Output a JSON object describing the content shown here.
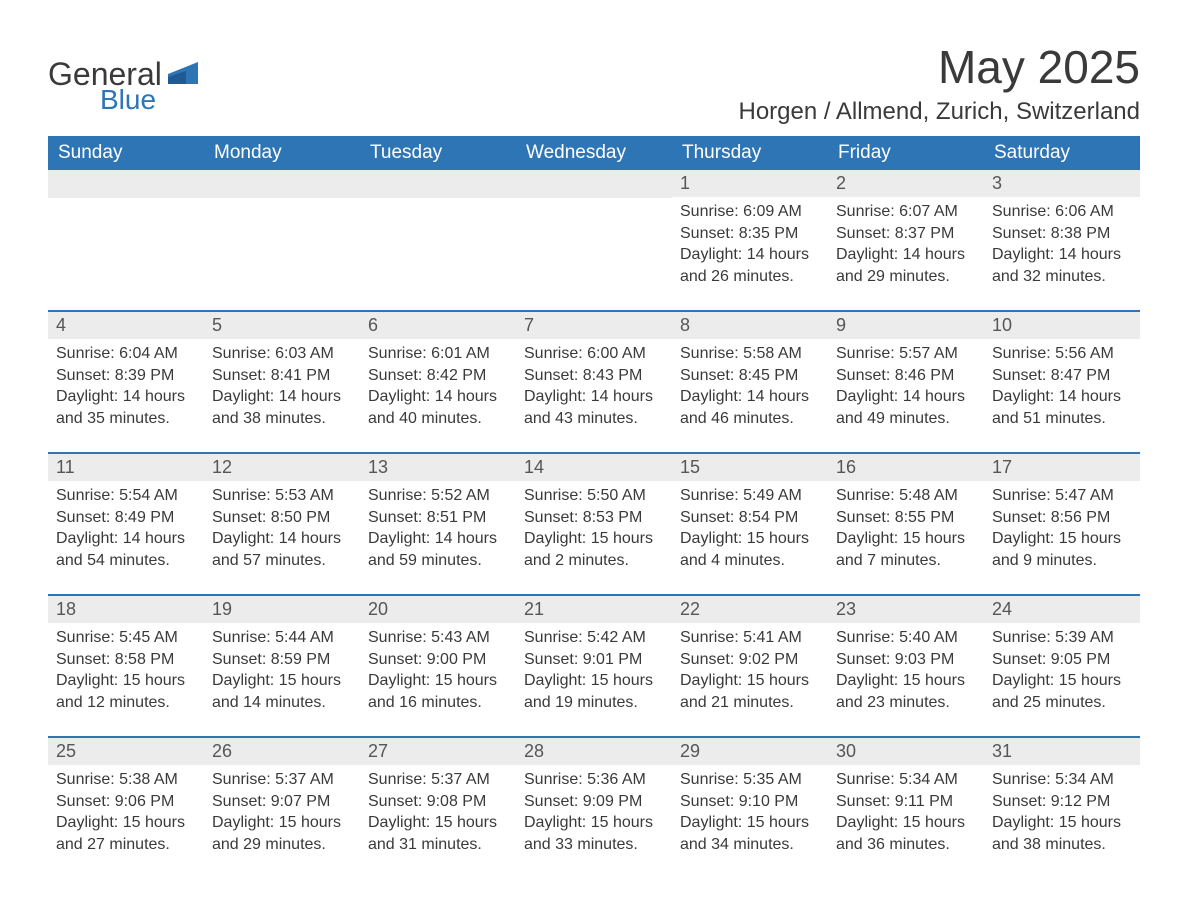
{
  "logo": {
    "general": "General",
    "blue": "Blue",
    "shape_color": "#2e75b6"
  },
  "header": {
    "title": "May 2025",
    "location": "Horgen / Allmend, Zurich, Switzerland"
  },
  "colors": {
    "header_bg": "#2e75b6",
    "daynum_bg": "#ececec",
    "text": "#3a3a3a",
    "row_border": "#2e75b6"
  },
  "weekdays": [
    "Sunday",
    "Monday",
    "Tuesday",
    "Wednesday",
    "Thursday",
    "Friday",
    "Saturday"
  ],
  "weeks": [
    [
      {
        "day": "",
        "sunrise": "",
        "sunset": "",
        "daylight": ""
      },
      {
        "day": "",
        "sunrise": "",
        "sunset": "",
        "daylight": ""
      },
      {
        "day": "",
        "sunrise": "",
        "sunset": "",
        "daylight": ""
      },
      {
        "day": "",
        "sunrise": "",
        "sunset": "",
        "daylight": ""
      },
      {
        "day": "1",
        "sunrise": "Sunrise: 6:09 AM",
        "sunset": "Sunset: 8:35 PM",
        "daylight": "Daylight: 14 hours and 26 minutes."
      },
      {
        "day": "2",
        "sunrise": "Sunrise: 6:07 AM",
        "sunset": "Sunset: 8:37 PM",
        "daylight": "Daylight: 14 hours and 29 minutes."
      },
      {
        "day": "3",
        "sunrise": "Sunrise: 6:06 AM",
        "sunset": "Sunset: 8:38 PM",
        "daylight": "Daylight: 14 hours and 32 minutes."
      }
    ],
    [
      {
        "day": "4",
        "sunrise": "Sunrise: 6:04 AM",
        "sunset": "Sunset: 8:39 PM",
        "daylight": "Daylight: 14 hours and 35 minutes."
      },
      {
        "day": "5",
        "sunrise": "Sunrise: 6:03 AM",
        "sunset": "Sunset: 8:41 PM",
        "daylight": "Daylight: 14 hours and 38 minutes."
      },
      {
        "day": "6",
        "sunrise": "Sunrise: 6:01 AM",
        "sunset": "Sunset: 8:42 PM",
        "daylight": "Daylight: 14 hours and 40 minutes."
      },
      {
        "day": "7",
        "sunrise": "Sunrise: 6:00 AM",
        "sunset": "Sunset: 8:43 PM",
        "daylight": "Daylight: 14 hours and 43 minutes."
      },
      {
        "day": "8",
        "sunrise": "Sunrise: 5:58 AM",
        "sunset": "Sunset: 8:45 PM",
        "daylight": "Daylight: 14 hours and 46 minutes."
      },
      {
        "day": "9",
        "sunrise": "Sunrise: 5:57 AM",
        "sunset": "Sunset: 8:46 PM",
        "daylight": "Daylight: 14 hours and 49 minutes."
      },
      {
        "day": "10",
        "sunrise": "Sunrise: 5:56 AM",
        "sunset": "Sunset: 8:47 PM",
        "daylight": "Daylight: 14 hours and 51 minutes."
      }
    ],
    [
      {
        "day": "11",
        "sunrise": "Sunrise: 5:54 AM",
        "sunset": "Sunset: 8:49 PM",
        "daylight": "Daylight: 14 hours and 54 minutes."
      },
      {
        "day": "12",
        "sunrise": "Sunrise: 5:53 AM",
        "sunset": "Sunset: 8:50 PM",
        "daylight": "Daylight: 14 hours and 57 minutes."
      },
      {
        "day": "13",
        "sunrise": "Sunrise: 5:52 AM",
        "sunset": "Sunset: 8:51 PM",
        "daylight": "Daylight: 14 hours and 59 minutes."
      },
      {
        "day": "14",
        "sunrise": "Sunrise: 5:50 AM",
        "sunset": "Sunset: 8:53 PM",
        "daylight": "Daylight: 15 hours and 2 minutes."
      },
      {
        "day": "15",
        "sunrise": "Sunrise: 5:49 AM",
        "sunset": "Sunset: 8:54 PM",
        "daylight": "Daylight: 15 hours and 4 minutes."
      },
      {
        "day": "16",
        "sunrise": "Sunrise: 5:48 AM",
        "sunset": "Sunset: 8:55 PM",
        "daylight": "Daylight: 15 hours and 7 minutes."
      },
      {
        "day": "17",
        "sunrise": "Sunrise: 5:47 AM",
        "sunset": "Sunset: 8:56 PM",
        "daylight": "Daylight: 15 hours and 9 minutes."
      }
    ],
    [
      {
        "day": "18",
        "sunrise": "Sunrise: 5:45 AM",
        "sunset": "Sunset: 8:58 PM",
        "daylight": "Daylight: 15 hours and 12 minutes."
      },
      {
        "day": "19",
        "sunrise": "Sunrise: 5:44 AM",
        "sunset": "Sunset: 8:59 PM",
        "daylight": "Daylight: 15 hours and 14 minutes."
      },
      {
        "day": "20",
        "sunrise": "Sunrise: 5:43 AM",
        "sunset": "Sunset: 9:00 PM",
        "daylight": "Daylight: 15 hours and 16 minutes."
      },
      {
        "day": "21",
        "sunrise": "Sunrise: 5:42 AM",
        "sunset": "Sunset: 9:01 PM",
        "daylight": "Daylight: 15 hours and 19 minutes."
      },
      {
        "day": "22",
        "sunrise": "Sunrise: 5:41 AM",
        "sunset": "Sunset: 9:02 PM",
        "daylight": "Daylight: 15 hours and 21 minutes."
      },
      {
        "day": "23",
        "sunrise": "Sunrise: 5:40 AM",
        "sunset": "Sunset: 9:03 PM",
        "daylight": "Daylight: 15 hours and 23 minutes."
      },
      {
        "day": "24",
        "sunrise": "Sunrise: 5:39 AM",
        "sunset": "Sunset: 9:05 PM",
        "daylight": "Daylight: 15 hours and 25 minutes."
      }
    ],
    [
      {
        "day": "25",
        "sunrise": "Sunrise: 5:38 AM",
        "sunset": "Sunset: 9:06 PM",
        "daylight": "Daylight: 15 hours and 27 minutes."
      },
      {
        "day": "26",
        "sunrise": "Sunrise: 5:37 AM",
        "sunset": "Sunset: 9:07 PM",
        "daylight": "Daylight: 15 hours and 29 minutes."
      },
      {
        "day": "27",
        "sunrise": "Sunrise: 5:37 AM",
        "sunset": "Sunset: 9:08 PM",
        "daylight": "Daylight: 15 hours and 31 minutes."
      },
      {
        "day": "28",
        "sunrise": "Sunrise: 5:36 AM",
        "sunset": "Sunset: 9:09 PM",
        "daylight": "Daylight: 15 hours and 33 minutes."
      },
      {
        "day": "29",
        "sunrise": "Sunrise: 5:35 AM",
        "sunset": "Sunset: 9:10 PM",
        "daylight": "Daylight: 15 hours and 34 minutes."
      },
      {
        "day": "30",
        "sunrise": "Sunrise: 5:34 AM",
        "sunset": "Sunset: 9:11 PM",
        "daylight": "Daylight: 15 hours and 36 minutes."
      },
      {
        "day": "31",
        "sunrise": "Sunrise: 5:34 AM",
        "sunset": "Sunset: 9:12 PM",
        "daylight": "Daylight: 15 hours and 38 minutes."
      }
    ]
  ]
}
